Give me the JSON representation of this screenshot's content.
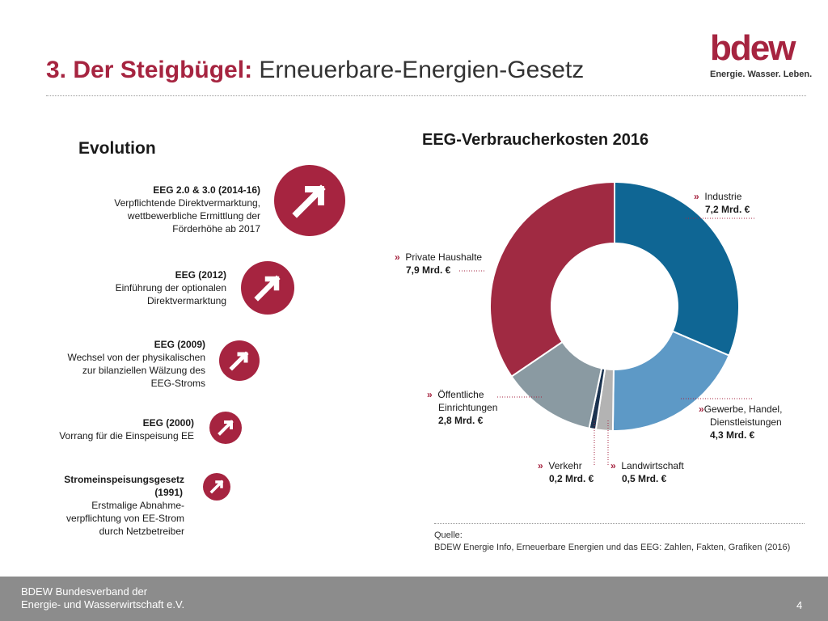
{
  "header": {
    "number": "3.",
    "title_bold": "Der Steigbügel:",
    "title_rest": "Erneuerbare-Energien-Gesetz"
  },
  "logo": {
    "word": "bdew",
    "tagline": "Energie. Wasser. Leben."
  },
  "evolution": {
    "heading": "Evolution",
    "items": [
      {
        "title": "EEG 2.0 & 3.0 (2014-16)",
        "lines": [
          "Verpflichtende Direktvermarktung,",
          "wettbewerbliche Ermittlung der",
          "Förderhöhe ab 2017"
        ]
      },
      {
        "title": "EEG (2012)",
        "lines": [
          "Einführung der optionalen",
          "Direktvermarktung"
        ]
      },
      {
        "title": "EEG (2009)",
        "lines": [
          "Wechsel von der physikalischen",
          "zur bilanziellen Wälzung des",
          "EEG-Stroms"
        ]
      },
      {
        "title": "EEG (2000)",
        "lines": [
          "Vorrang für die Einspeisung EE"
        ]
      },
      {
        "title": "Stromeinspeisungsgesetz",
        "title2": "(1991)",
        "lines": [
          "Erstmalige Abnahme-",
          "verpflichtung von EE-Strom",
          "durch Netzbetreiber"
        ]
      }
    ]
  },
  "chart_data": {
    "type": "pie",
    "variant": "donut",
    "title": "EEG-Verbraucherkosten 2016",
    "unit": "Mrd. €",
    "slices": [
      {
        "label": "Industrie",
        "value": 7.2,
        "value_label": "7,2 Mrd. €",
        "color": "#0f6694"
      },
      {
        "label": "Gewerbe, Handel, Dienstleistungen",
        "label_lines": [
          "Gewerbe, Handel,",
          "Dienstleistungen"
        ],
        "value": 4.3,
        "value_label": "4,3 Mrd. €",
        "color": "#5d99c6"
      },
      {
        "label": "Landwirtschaft",
        "value": 0.5,
        "value_label": "0,5 Mrd. €",
        "color": "#b3b3b3"
      },
      {
        "label": "Verkehr",
        "value": 0.2,
        "value_label": "0,2 Mrd. €",
        "color": "#1b3350"
      },
      {
        "label": "Öffentliche Einrichtungen",
        "label_lines": [
          "Öffentliche",
          "Einrichtungen"
        ],
        "value": 2.8,
        "value_label": "2,8 Mrd. €",
        "color": "#8a9aa2"
      },
      {
        "label": "Private Haushalte",
        "value": 7.9,
        "value_label": "7,9 Mrd. €",
        "color": "#a02a42"
      }
    ]
  },
  "source": {
    "label": "Quelle:",
    "text": "BDEW Energie Info, Erneuerbare Energien und das EEG: Zahlen, Fakten, Grafiken (2016)"
  },
  "footer": {
    "org_line1": "BDEW Bundesverband der",
    "org_line2": "Energie- und Wasserwirtschaft e.V.",
    "page": "4"
  },
  "colors": {
    "accent": "#a62440",
    "footer_bg": "#8c8c8c"
  }
}
